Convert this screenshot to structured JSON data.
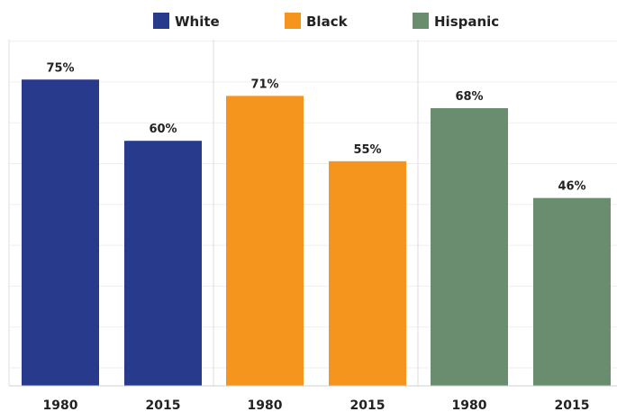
{
  "chart_data": {
    "type": "bar",
    "legend_position": "top",
    "ylim": [
      0,
      80
    ],
    "grid": true,
    "groups": [
      {
        "name": "White",
        "color": "#283a8c",
        "categories": [
          "1980",
          "2015"
        ],
        "values": [
          75,
          60
        ],
        "labels": [
          "75%",
          "60%"
        ]
      },
      {
        "name": "Black",
        "color": "#f6951e",
        "categories": [
          "1980",
          "2015"
        ],
        "values": [
          71,
          55
        ],
        "labels": [
          "71%",
          "55%"
        ]
      },
      {
        "name": "Hispanic",
        "color": "#6a8c6f",
        "categories": [
          "1980",
          "2015"
        ],
        "values": [
          68,
          46
        ],
        "labels": [
          "68%",
          "46%"
        ]
      }
    ]
  }
}
